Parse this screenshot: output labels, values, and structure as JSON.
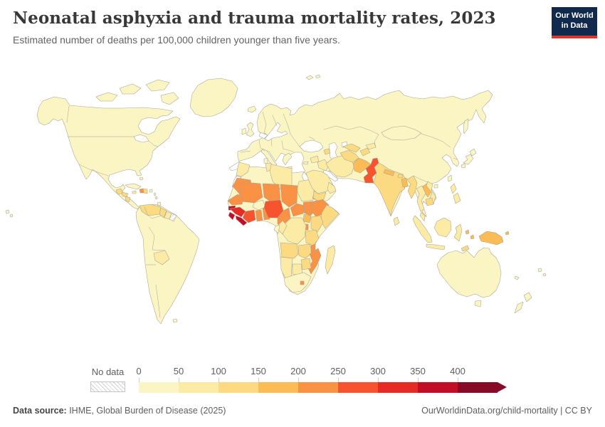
{
  "header": {
    "title": "Neonatal asphyxia and trauma mortality rates, 2023",
    "subtitle": "Estimated number of deaths per 100,000 children younger than five years."
  },
  "logo": {
    "line1": "Our World",
    "line2": "in Data",
    "bg_color": "#12294e",
    "accent_color": "#dc352c"
  },
  "legend": {
    "no_data_label": "No data",
    "tick_labels": [
      "0",
      "50",
      "100",
      "150",
      "200",
      "250",
      "300",
      "350",
      "400"
    ]
  },
  "footer": {
    "source_label": "Data source:",
    "source_value": " IHME, Global Burden of Disease (2025)",
    "attribution": "OurWorldinData.org/child-mortality | CC BY"
  },
  "chart_data": {
    "type": "heatmap",
    "subtype": "world-choropleth-map",
    "title": "Neonatal asphyxia and trauma mortality rates, 2023",
    "subtitle": "Estimated number of deaths per 100,000 children younger than five years.",
    "year": "2023",
    "unit": "deaths per 100,000 children younger than five years",
    "legend_position": "bottom",
    "ocean_color": "#ffffff",
    "border_color": "#a6a396",
    "bins": [
      {
        "range": "0-50",
        "color": "#fbf5c4"
      },
      {
        "range": "50-100",
        "color": "#fbeba4"
      },
      {
        "range": "100-150",
        "color": "#fbda81"
      },
      {
        "range": "150-200",
        "color": "#fbbc56"
      },
      {
        "range": "200-250",
        "color": "#fa9245"
      },
      {
        "range": "250-300",
        "color": "#f7532e"
      },
      {
        "range": "300-350",
        "color": "#e62b25"
      },
      {
        "range": "350-400",
        "color": "#c30d26"
      },
      {
        "range": "400+",
        "color": "#870b26"
      }
    ],
    "no_data": {
      "label": "No data",
      "style": "hatched"
    },
    "regions": {
      "north-america": "0-50",
      "arctic-islands": "0-50",
      "greenland": "0-50",
      "iceland": "0-50",
      "south-america": "0-50",
      "afro-eurasia": "0-50",
      "uk": "0-50",
      "ireland": "0-50",
      "australia": "0-50",
      "tasmania": "0-50",
      "new-zealand": "0-50",
      "japan": "0-50",
      "sakhalin": "0-50",
      "taiwan": "0-50",
      "hainan": "0-50",
      "svalbard": "0-50",
      "hawaii": "0-50",
      "fiji": "0-50",
      "new-caledonia": "0-50",
      "falklands": "0-50",
      "trinidad": "0-50",
      "bahamas": "0-50",
      "cuba": "0-50",
      "puerto-rico": "0-50",
      "lesser-antilles": "0-50",
      "italy": "0-50",
      "sicily": "0-50",
      "sardinia": "0-50",
      "greece": "0-50",
      "crete": "0-50",
      "cyprus": "0-50",
      "mongolia": "0-50",
      "south-africa": "0-50",
      "gabon": "0-50",
      "burkina-faso": "0-50",
      "morocco": "50-100",
      "tunisia": "50-100",
      "libya": "50-100",
      "sudan": "50-100",
      "dr-congo": "50-100",
      "congo": "50-100",
      "botswana": "50-100",
      "namibia": "50-100",
      "madagascar": "50-100",
      "jamaica": "50-100",
      "suriname": "50-100",
      "bolivia": "50-100",
      "iraq": "50-100",
      "syria": "50-100",
      "saudi-arabia": "50-100",
      "oman": "50-100",
      "iran": "50-100",
      "kyrgyzstan": "50-100",
      "thailand": "50-100",
      "vietnam": "50-100",
      "malaysia": "50-100",
      "indonesia": "50-100",
      "philippines": "50-100",
      "sri-lanka": "50-100",
      "somalia": "100-150",
      "kenya": "100-150",
      "tanzania": "100-150",
      "angola": "100-150",
      "zambia": "100-150",
      "zimbabwe": "100-150",
      "yemen": "100-150",
      "azerbaijan": "100-150",
      "turkmenistan": "100-150",
      "uzbekistan": "100-150",
      "tajikistan": "100-150",
      "india": "100-150",
      "bhutan": "100-150",
      "myanmar": "100-150",
      "cambodia": "100-150",
      "dominican-republic": "100-150",
      "guatemala": "100-150",
      "honduras": "100-150",
      "nicaragua": "100-150",
      "venezuela": "100-150",
      "guyana": "100-150",
      "eritrea": "150-200",
      "uganda": "150-200",
      "afghanistan": "150-200",
      "nepal": "150-200",
      "bangladesh": "150-200",
      "laos": "150-200",
      "new-guinea": "150-200",
      "moluccas": "150-200",
      "bismarck": "150-200",
      "mauritania": "200-250",
      "mali": "200-250",
      "niger": "200-250",
      "chad": "200-250",
      "senegal": "200-250",
      "ghana": "200-250",
      "togo-benin": "200-250",
      "cameroon": "200-250",
      "central-african-republic": "200-250",
      "south-sudan": "200-250",
      "ethiopia": "200-250",
      "rwanda-burundi": "200-250",
      "malawi": "200-250",
      "mozambique": "200-250",
      "lesotho": "200-250",
      "haiti": "200-250",
      "timor": "100-150",
      "ivory-coast": "250-300",
      "nigeria": "250-300",
      "pakistan": "250-300",
      "guinea": "300-350",
      "guinea-bissau": "350-400",
      "sierra-leone": "350-400",
      "liberia": "350-400",
      "western-sahara": "No data",
      "french-guiana": "No data"
    }
  }
}
